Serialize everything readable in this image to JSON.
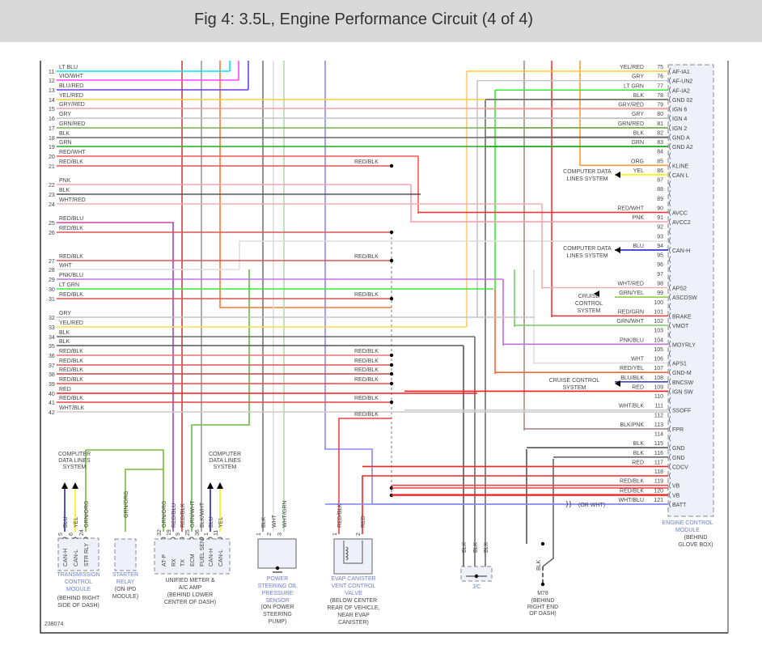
{
  "title": "Fig 4: 3.5L, Engine Performance Circuit (4 of 4)",
  "figure_id": "238074",
  "left_connector": [
    {
      "pin": "11",
      "wire": "LT BLU",
      "color": "#00e5ff"
    },
    {
      "pin": "12",
      "wire": "VIO/WHT",
      "color": "#ff44ff"
    },
    {
      "pin": "13",
      "wire": "BLU/RED",
      "color": "#6a3cff"
    },
    {
      "pin": "14",
      "wire": "YEL/RED",
      "color": "#ffcc33"
    },
    {
      "pin": "15",
      "wire": "GRY/RED",
      "color": "#f0a0a0"
    },
    {
      "pin": "16",
      "wire": "GRY",
      "color": "#c4c4c4"
    },
    {
      "pin": "17",
      "wire": "GRN/RED",
      "color": "#77b050"
    },
    {
      "pin": "18",
      "wire": "BLK",
      "color": "#6a6a6a"
    },
    {
      "pin": "19",
      "wire": "GRN",
      "color": "#22aa22"
    },
    {
      "pin": "20",
      "wire": "RED/WHT",
      "color": "#ff5555"
    },
    {
      "pin": "21",
      "wire": "RED/BLK",
      "color": "#e05555"
    },
    {
      "pin": "22",
      "wire": "PNK",
      "color": "#ffa0b0"
    },
    {
      "pin": "23",
      "wire": "BLK",
      "color": "#555555"
    },
    {
      "pin": "24",
      "wire": "WHT/RED",
      "color": "#f0b0b0"
    },
    {
      "pin": "25",
      "wire": "RED/BLU",
      "color": "#cc44aa"
    },
    {
      "pin": "26",
      "wire": "RED/BLK",
      "color": "#e05555"
    },
    {
      "pin": "27",
      "wire": "RED/BLK",
      "color": "#e05555"
    },
    {
      "pin": "28",
      "wire": "WHT",
      "color": "#dddddd"
    },
    {
      "pin": "29",
      "wire": "PNK/BLU",
      "color": "#c070e0"
    },
    {
      "pin": "30",
      "wire": "LT GRN",
      "color": "#33ee33"
    },
    {
      "pin": "31",
      "wire": "RED/BLK",
      "color": "#e05555"
    },
    {
      "pin": "32",
      "wire": "GRY",
      "color": "#c4c4c4"
    },
    {
      "pin": "33",
      "wire": "YEL/RED",
      "color": "#ffdd44"
    },
    {
      "pin": "34",
      "wire": "BLK",
      "color": "#6a6a6a"
    },
    {
      "pin": "35",
      "wire": "BLK",
      "color": "#555555"
    },
    {
      "pin": "36",
      "wire": "RED/BLK",
      "color": "#f07070"
    },
    {
      "pin": "37",
      "wire": "RED/BLK",
      "color": "#e05555"
    },
    {
      "pin": "38",
      "wire": "RED/BLK",
      "color": "#d04040"
    },
    {
      "pin": "39",
      "wire": "RED/BLK",
      "color": "#ff4444"
    },
    {
      "pin": "40",
      "wire": "RED",
      "color": "#ff1a1a"
    },
    {
      "pin": "41",
      "wire": "RED/BLK",
      "color": "#ee4444"
    },
    {
      "pin": "42",
      "wire": "WHT/BLK",
      "color": "#cccccc"
    }
  ],
  "mid_labels": [
    "RED/BLK",
    "RED/BLK",
    "RED/BLK",
    "RED/BLK",
    "RED/BLK",
    "RED/BLK",
    "RED/BLK",
    "RED/BLK",
    "RED/BLK"
  ],
  "ecm": {
    "name": "ENGINE CONTROL MODULE",
    "location": "(BEHIND GLOVE BOX)",
    "pins": [
      {
        "pin": "75",
        "wire": "YEL/RED",
        "name": "AF-IA1",
        "color": "#ffcc33"
      },
      {
        "pin": "76",
        "wire": "GRY",
        "name": "AF-UN2",
        "color": "#c4c4c4"
      },
      {
        "pin": "77",
        "wire": "LT GRN",
        "name": "AF-IA2",
        "color": "#33ee33"
      },
      {
        "pin": "78",
        "wire": "BLK",
        "name": "GND 02",
        "color": "#6a6a6a"
      },
      {
        "pin": "79",
        "wire": "GRY/RED",
        "name": "IGN 6",
        "color": "#f0a0a0"
      },
      {
        "pin": "80",
        "wire": "GRY",
        "name": "IGN 4",
        "color": "#c4c4c4"
      },
      {
        "pin": "81",
        "wire": "GRN/RED",
        "name": "IGN 2",
        "color": "#77b050"
      },
      {
        "pin": "82",
        "wire": "BLK",
        "name": "GND A",
        "color": "#6a6a6a"
      },
      {
        "pin": "83",
        "wire": "GRN",
        "name": "GND A2",
        "color": "#22aa22"
      },
      {
        "pin": "84",
        "wire": "",
        "name": "",
        "color": ""
      },
      {
        "pin": "85",
        "wire": "ORG",
        "name": "KLINE",
        "color": "#ff9933"
      },
      {
        "pin": "86",
        "wire": "YEL",
        "name": "CAN L",
        "color": "#ffee00"
      },
      {
        "pin": "87",
        "wire": "",
        "name": "",
        "color": ""
      },
      {
        "pin": "88",
        "wire": "",
        "name": "",
        "color": ""
      },
      {
        "pin": "89",
        "wire": "",
        "name": "",
        "color": ""
      },
      {
        "pin": "90",
        "wire": "RED/WHT",
        "name": "AVCC",
        "color": "#ff3333"
      },
      {
        "pin": "91",
        "wire": "PNK",
        "name": "AVCC2",
        "color": "#ffa0b0"
      },
      {
        "pin": "92",
        "wire": "",
        "name": "",
        "color": ""
      },
      {
        "pin": "93",
        "wire": "",
        "name": "",
        "color": ""
      },
      {
        "pin": "94",
        "wire": "BLU",
        "name": "CAN-H",
        "color": "#2222dd"
      },
      {
        "pin": "95",
        "wire": "",
        "name": "",
        "color": ""
      },
      {
        "pin": "96",
        "wire": "",
        "name": "",
        "color": ""
      },
      {
        "pin": "97",
        "wire": "",
        "name": "",
        "color": ""
      },
      {
        "pin": "98",
        "wire": "WHT/RED",
        "name": "APS2",
        "color": "#f0b0b0"
      },
      {
        "pin": "99",
        "wire": "GRN/YEL",
        "name": "ASCDSW",
        "color": "#88cc33"
      },
      {
        "pin": "100",
        "wire": "",
        "name": "",
        "color": ""
      },
      {
        "pin": "101",
        "wire": "RED/GRN",
        "name": "BRAKE",
        "color": "#ee3333"
      },
      {
        "pin": "102",
        "wire": "GRN/WHT",
        "name": "VMOT",
        "color": "#77cc66"
      },
      {
        "pin": "103",
        "wire": "",
        "name": "",
        "color": ""
      },
      {
        "pin": "104",
        "wire": "PNK/BLU",
        "name": "MOYRLY",
        "color": "#c070e0"
      },
      {
        "pin": "105",
        "wire": "",
        "name": "",
        "color": ""
      },
      {
        "pin": "106",
        "wire": "WHT",
        "name": "APS1",
        "color": "#dddddd"
      },
      {
        "pin": "107",
        "wire": "RED/YEL",
        "name": "GND-M",
        "color": "#ff6633"
      },
      {
        "pin": "108",
        "wire": "BLU/BLK",
        "name": "BNCSW",
        "color": "#4444cc"
      },
      {
        "pin": "109",
        "wire": "RED",
        "name": "IGN SW",
        "color": "#ff1a1a"
      },
      {
        "pin": "110",
        "wire": "",
        "name": "",
        "color": ""
      },
      {
        "pin": "111",
        "wire": "WHT/BLK",
        "name": "SSOFF",
        "color": "#cccccc"
      },
      {
        "pin": "112",
        "wire": "",
        "name": "",
        "color": ""
      },
      {
        "pin": "113",
        "wire": "BLK/PNK",
        "name": "FPR",
        "color": "#aa8888"
      },
      {
        "pin": "114",
        "wire": "",
        "name": "",
        "color": ""
      },
      {
        "pin": "115",
        "wire": "BLK",
        "name": "GND",
        "color": "#555555"
      },
      {
        "pin": "116",
        "wire": "BLK",
        "name": "GND",
        "color": "#666666"
      },
      {
        "pin": "117",
        "wire": "RED",
        "name": "CDCV",
        "color": "#ff2020"
      },
      {
        "pin": "118",
        "wire": "",
        "name": "",
        "color": ""
      },
      {
        "pin": "119",
        "wire": "RED/BLK",
        "name": "VB",
        "color": "#ee4444"
      },
      {
        "pin": "120",
        "wire": "RED/BLK",
        "name": "VB",
        "color": "#ff1a1a"
      },
      {
        "pin": "121",
        "wire": "WHT/BLU",
        "name": "BATT",
        "color": "#8888ff"
      }
    ]
  },
  "ecm_notes": {
    "computer_data_1": "COMPUTER DATA|LINES SYSTEM",
    "computer_data_2": "COMPUTER DATA|LINES SYSTEM",
    "cruise_1": "CRUISE|CONTROL|SYSTEM",
    "cruise_2": "CRUISE CONTROL|SYSTEM",
    "or_wht": "(OR WHT)"
  },
  "components": {
    "computer_data_left": "COMPUTER|DATA LINES|SYSTEM",
    "computer_data_right": "COMPUTER|DATA LINES|SYSTEM",
    "tcm": {
      "name": "TRANSMISSION|CONTROL|MODULE",
      "location": "(BEHIND RIGHT|SIDE OF DASH)",
      "pins": [
        {
          "pin": "5",
          "wire": "BLU",
          "name": "CAN-H"
        },
        {
          "pin": "6",
          "wire": "YEL",
          "name": "CAN-L"
        },
        {
          "pin": "24",
          "wire": "GRN/ORG",
          "name": "STR RLY"
        }
      ]
    },
    "starter_relay": {
      "name": "STARTER|RELAY",
      "location": "(ON IPD|MODULE)",
      "wire": "GRN/ORG"
    },
    "unified_meter": {
      "name": "UNIFIED METER &|A/C AMP",
      "location": "(BEHIND LOWER|CENTER OF DASH)",
      "pins": [
        {
          "pin": "32",
          "wire": "GRN/ORG",
          "name": "AT-P"
        },
        {
          "pin": "19",
          "wire": "RED/BLU",
          "name": "RX"
        },
        {
          "pin": "9",
          "wire": "RED/BLK",
          "name": "TX"
        },
        {
          "pin": "25",
          "wire": "GRN/WHT",
          "name": "ECM"
        },
        {
          "pin": "36",
          "wire": "BLK/WHT",
          "name": "FUEL SEN"
        },
        {
          "pin": "1",
          "wire": "BLU",
          "name": "CAN-H"
        },
        {
          "pin": "11",
          "wire": "YEL",
          "name": "CAN-L"
        }
      ]
    },
    "ps_sensor": {
      "name": "POWER|STEERING OIL|PRESSURE|SENSOR",
      "location": "(ON POWER|STEERING|PUMP)",
      "pins": [
        {
          "pin": "1",
          "wire": "BLK"
        },
        {
          "pin": "2",
          "wire": "WHT"
        },
        {
          "pin": "3",
          "wire": "WHT/GRN"
        }
      ]
    },
    "evap": {
      "name": "EVAP CANISTER|VENT CONTROL|VALVE",
      "location": "(BELOW CENTER|REAR OF VEHICLE,|NEAR EVAP|CANISTER)",
      "pins": [
        {
          "pin": "1",
          "wire": "RED/BLK"
        },
        {
          "pin": "2",
          "wire": "RED"
        }
      ]
    },
    "jc": {
      "name": "J/C",
      "wires": [
        "BLK",
        "BLK",
        "BLK"
      ]
    },
    "m78": {
      "name": "M78",
      "location": "(BEHIND|RIGHT END|OF DASH)",
      "wire": "BLK"
    }
  },
  "colors": {
    "component_label": "#6a7fd0",
    "text": "#444444",
    "ecm_fill": "#eef0fa"
  }
}
